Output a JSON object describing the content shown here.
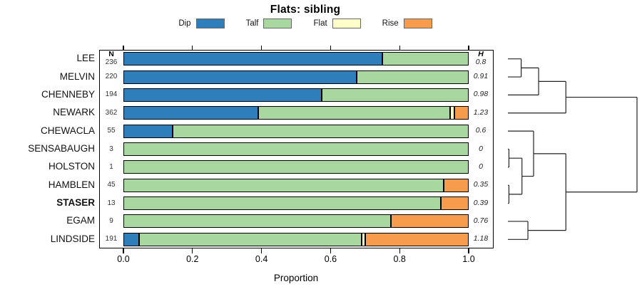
{
  "title": "Flats: sibling",
  "legend": [
    {
      "label": "Dip",
      "color": "#2E7EBC"
    },
    {
      "label": "Talf",
      "color": "#A8D8A0"
    },
    {
      "label": "Flat",
      "color": "#FFFFC9"
    },
    {
      "label": "Rise",
      "color": "#F79B4D"
    }
  ],
  "columns": {
    "n_header": "N",
    "h_header": "H"
  },
  "xaxis": {
    "label": "Proportion",
    "ticks": [
      {
        "value": 0.0,
        "label": "0.0"
      },
      {
        "value": 0.2,
        "label": "0.2"
      },
      {
        "value": 0.4,
        "label": "0.4"
      },
      {
        "value": 0.6,
        "label": "0.6"
      },
      {
        "value": 0.8,
        "label": "0.8"
      },
      {
        "value": 1.0,
        "label": "1.0"
      }
    ]
  },
  "chart_data": {
    "type": "bar",
    "stacked": true,
    "orientation": "horizontal",
    "title": "Flats: sibling",
    "xlabel": "Proportion",
    "xlim": [
      0,
      1
    ],
    "series_names": [
      "Dip",
      "Talf",
      "Flat",
      "Rise"
    ],
    "rows": [
      {
        "name": "LEE",
        "n": "236",
        "h": "0.8",
        "bold": false,
        "values": [
          0.75,
          0.25,
          0,
          0
        ]
      },
      {
        "name": "MELVIN",
        "n": "220",
        "h": "0.91",
        "bold": false,
        "values": [
          0.675,
          0.325,
          0,
          0
        ]
      },
      {
        "name": "CHENNEBY",
        "n": "194",
        "h": "0.98",
        "bold": false,
        "values": [
          0.575,
          0.425,
          0,
          0
        ]
      },
      {
        "name": "NEWARK",
        "n": "362",
        "h": "1.23",
        "bold": false,
        "values": [
          0.39,
          0.556,
          0.012,
          0.042
        ]
      },
      {
        "name": "CHEWACLA",
        "n": "55",
        "h": "0.6",
        "bold": false,
        "values": [
          0.142,
          0.858,
          0,
          0
        ]
      },
      {
        "name": "SENSABAUGH",
        "n": "3",
        "h": "0",
        "bold": false,
        "values": [
          0,
          1,
          0,
          0
        ]
      },
      {
        "name": "HOLSTON",
        "n": "1",
        "h": "0",
        "bold": false,
        "values": [
          0,
          1,
          0,
          0
        ]
      },
      {
        "name": "HAMBLEN",
        "n": "45",
        "h": "0.35",
        "bold": false,
        "values": [
          0,
          0.928,
          0,
          0.072
        ]
      },
      {
        "name": "STASER",
        "n": "13",
        "h": "0.39",
        "bold": true,
        "values": [
          0,
          0.92,
          0,
          0.08
        ]
      },
      {
        "name": "EGAM",
        "n": "9",
        "h": "0.76",
        "bold": false,
        "values": [
          0,
          0.775,
          0,
          0.225
        ]
      },
      {
        "name": "LINDSIDE",
        "n": "191",
        "h": "1.18",
        "bold": false,
        "values": [
          0.045,
          0.645,
          0.01,
          0.3
        ]
      }
    ],
    "dendrogram": {
      "note": "merge heights are fractions of dendrogram width",
      "tree": {
        "h": 1.0,
        "children": [
          {
            "h": 0.449,
            "children": [
              {
                "h": 0.238,
                "children": [
                  {
                    "h": 0.103,
                    "children": [
                      {
                        "leaf": "LEE"
                      },
                      {
                        "leaf": "MELVIN"
                      }
                    ]
                  },
                  {
                    "leaf": "CHENNEBY"
                  }
                ]
              },
              {
                "leaf": "NEWARK"
              }
            ]
          },
          {
            "h": 0.449,
            "children": [
              {
                "h": 0.199,
                "children": [
                  {
                    "leaf": "CHEWACLA"
                  },
                  {
                    "h": 0.109,
                    "children": [
                      {
                        "h": 0.008,
                        "children": [
                          {
                            "leaf": "SENSABAUGH"
                          },
                          {
                            "leaf": "HOLSTON"
                          }
                        ]
                      },
                      {
                        "h": 0.008,
                        "children": [
                          {
                            "leaf": "HAMBLEN"
                          },
                          {
                            "leaf": "STASER"
                          }
                        ]
                      }
                    ]
                  }
                ]
              },
              {
                "h": 0.155,
                "children": [
                  {
                    "leaf": "EGAM"
                  },
                  {
                    "leaf": "LINDSIDE"
                  }
                ]
              }
            ]
          }
        ]
      }
    }
  }
}
